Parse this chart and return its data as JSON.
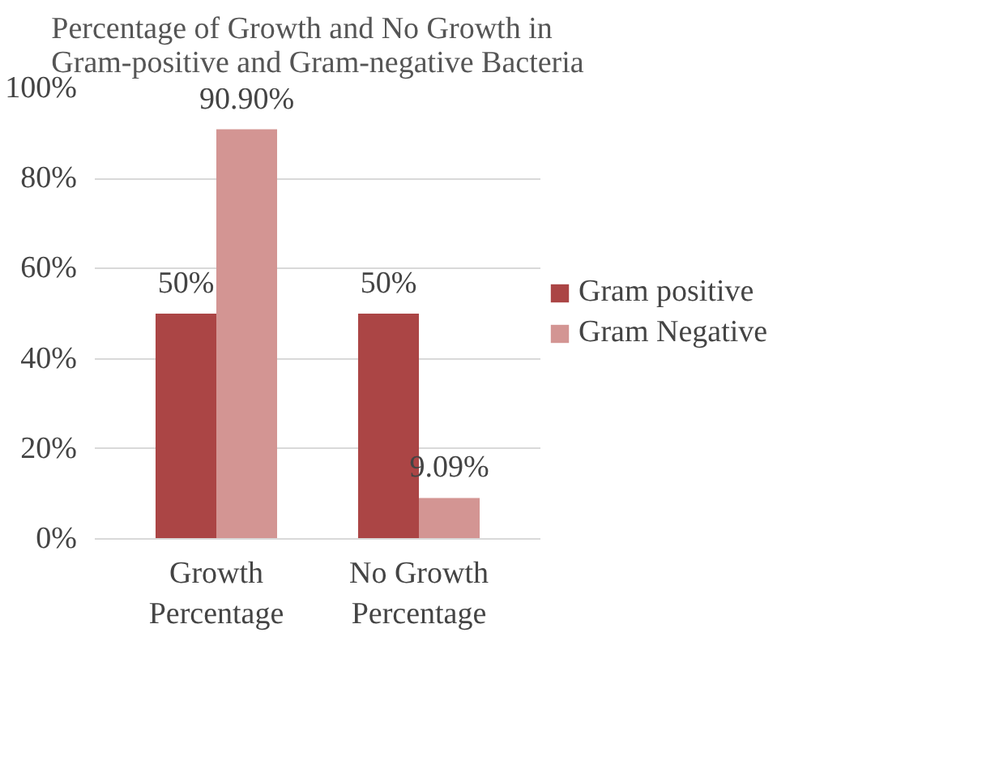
{
  "chart_data": {
    "type": "bar",
    "title": "Percentage of Growth and No Growth in Gram-positive and Gram-negative Bacteria",
    "categories": [
      "Growth Percentage",
      "No Growth Percentage"
    ],
    "series": [
      {
        "name": "Gram positive",
        "color": "#ab4545",
        "values": [
          50,
          50
        ],
        "value_labels": [
          "50%",
          "50%"
        ]
      },
      {
        "name": "Gram Negative",
        "color": "#d39593",
        "values": [
          90.9,
          9.09
        ],
        "value_labels": [
          "90.90%",
          "9.09%"
        ]
      }
    ],
    "ylim": [
      0,
      100
    ],
    "yticks": [
      {
        "value": 0,
        "label": "0%"
      },
      {
        "value": 20,
        "label": "20%"
      },
      {
        "value": 40,
        "label": "40%"
      },
      {
        "value": 60,
        "label": "60%"
      },
      {
        "value": 80,
        "label": "80%"
      },
      {
        "value": 100,
        "label": "100%"
      }
    ],
    "grid": "y",
    "legend": "right"
  }
}
